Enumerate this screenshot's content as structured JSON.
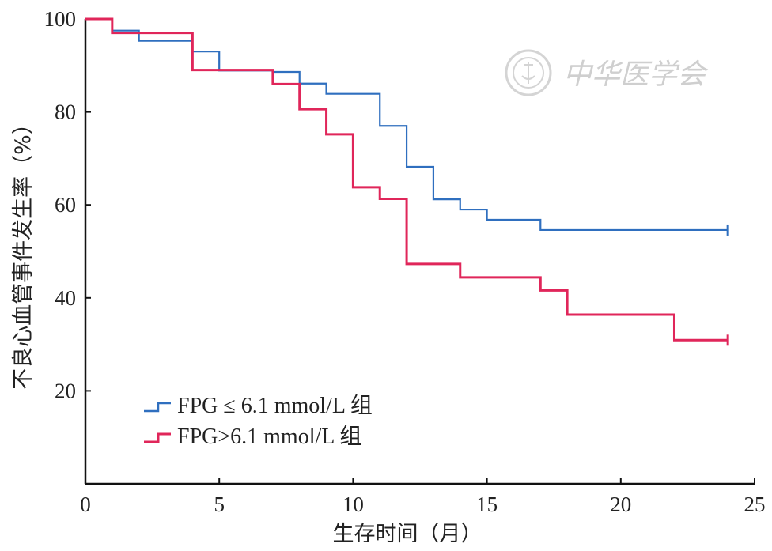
{
  "watermark": {
    "text": "中华医学会"
  },
  "chart_data": {
    "type": "line",
    "step": true,
    "title": "",
    "xlabel": "生存时间（月）",
    "ylabel": "不良心血管事件发生率（%）",
    "xlim": [
      0,
      25
    ],
    "ylim": [
      0,
      100
    ],
    "xticks": [
      0,
      5,
      10,
      15,
      20,
      25
    ],
    "yticks": [
      20,
      40,
      60,
      80,
      100
    ],
    "grid": false,
    "legend_position": "bottom-left",
    "series": [
      {
        "name": "FPG ≤ 6.1 mmol/L 组",
        "color": "#2f6fbf",
        "x": [
          0,
          1.0,
          2.0,
          4.0,
          5.0,
          7.0,
          8.0,
          9.0,
          11.0,
          12.0,
          13.0,
          14.0,
          15.0,
          17.0,
          24.0
        ],
        "y": [
          100,
          97.5,
          95.3,
          93.0,
          88.9,
          88.6,
          86.1,
          83.9,
          77.0,
          68.2,
          61.2,
          59.0,
          56.8,
          54.6,
          54.6
        ],
        "censored_x": [
          24.0
        ]
      },
      {
        "name": "FPG>6.1 mmol/L 组",
        "color": "#e0265a",
        "x": [
          0,
          1.0,
          4.0,
          7.0,
          8.0,
          9.0,
          10.0,
          11.0,
          12.0,
          14.0,
          17.0,
          18.0,
          22.0,
          24.0
        ],
        "y": [
          100,
          97.0,
          89.0,
          86.0,
          80.6,
          75.2,
          63.8,
          61.3,
          47.3,
          44.4,
          41.6,
          36.4,
          30.9,
          30.9
        ],
        "censored_x": [
          24.0
        ]
      }
    ]
  }
}
